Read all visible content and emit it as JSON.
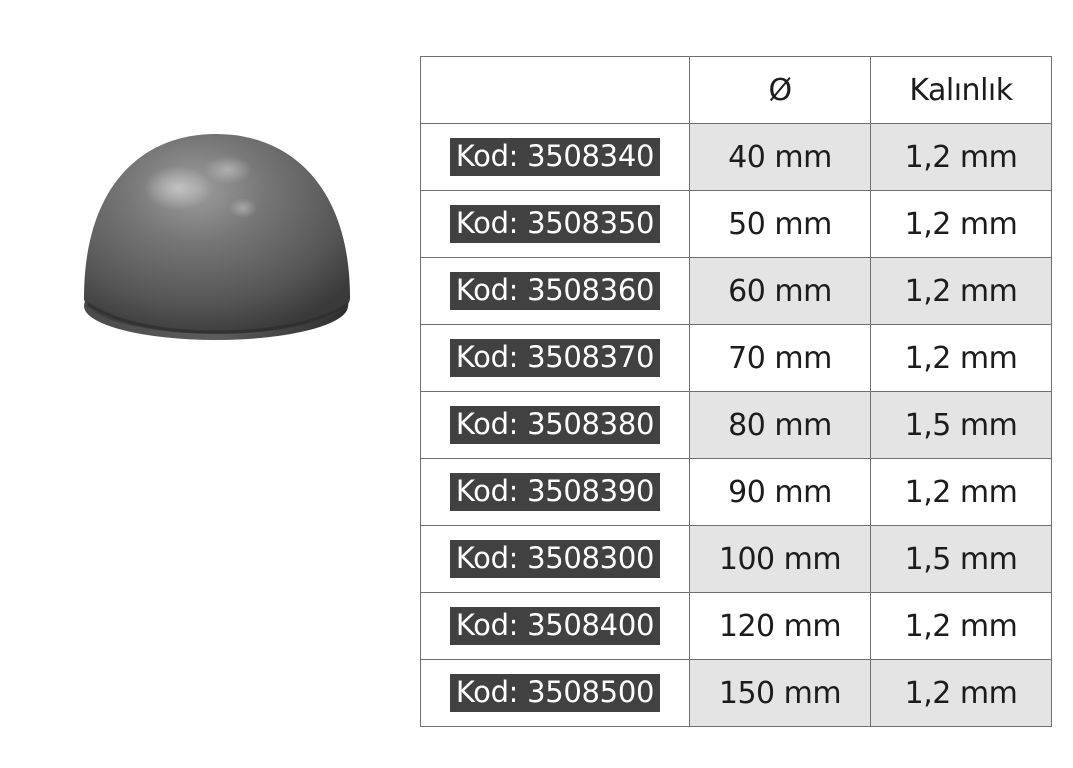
{
  "table": {
    "headers": {
      "code": "",
      "diameter": "Ø",
      "thickness": "Kalınlık"
    },
    "rows": [
      {
        "code": "Kod: 3508340",
        "diameter": "40 mm",
        "thickness": "1,2 mm"
      },
      {
        "code": "Kod: 3508350",
        "diameter": "50 mm",
        "thickness": "1,2 mm"
      },
      {
        "code": "Kod: 3508360",
        "diameter": "60 mm",
        "thickness": "1,2 mm"
      },
      {
        "code": "Kod: 3508370",
        "diameter": "70 mm",
        "thickness": "1,2 mm"
      },
      {
        "code": "Kod: 3508380",
        "diameter": "80 mm",
        "thickness": "1,5 mm"
      },
      {
        "code": "Kod: 3508390",
        "diameter": "90 mm",
        "thickness": "1,2 mm"
      },
      {
        "code": "Kod: 3508300",
        "diameter": "100 mm",
        "thickness": "1,5 mm"
      },
      {
        "code": "Kod: 3508400",
        "diameter": "120 mm",
        "thickness": "1,2 mm"
      },
      {
        "code": "Kod: 3508500",
        "diameter": "150 mm",
        "thickness": "1,2 mm"
      }
    ]
  },
  "colors": {
    "badge_bg": "#414141",
    "badge_text": "#ffffff",
    "shaded_cell": "#e4e4e4",
    "border": "#6f6f6f",
    "metal_dark": "#3e3e3e",
    "metal_light": "#9a9a9a"
  },
  "icons": {
    "product": "steel-hemisphere-image"
  }
}
